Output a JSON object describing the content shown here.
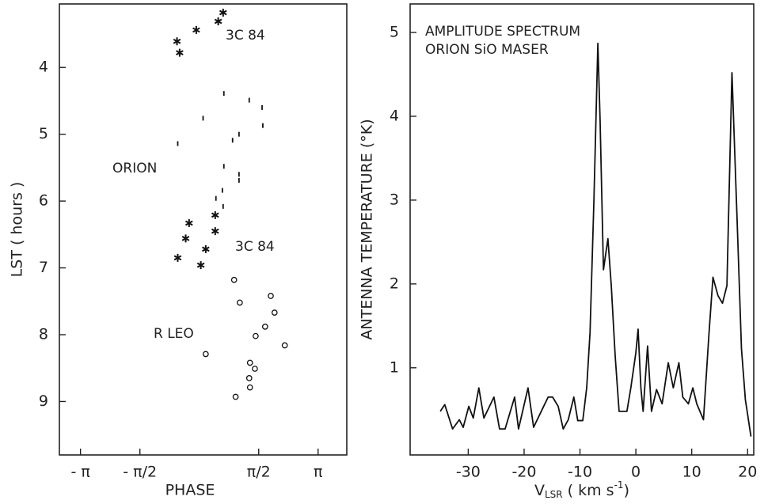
{
  "chart_data": [
    {
      "type": "scatter",
      "xlabel": "PHASE",
      "ylabel": "LST  ( hours )",
      "xlim": [
        -3.7,
        3.9
      ],
      "ylim": [
        3.05,
        9.8
      ],
      "y_inverted": true,
      "xticks": [
        {
          "value": -3.14159,
          "label": "- π"
        },
        {
          "value": -1.5708,
          "label": "- π/2"
        },
        {
          "value": 1.5708,
          "label": "π/2"
        },
        {
          "value": 3.14159,
          "label": "π"
        }
      ],
      "yticks": [
        4,
        5,
        6,
        7,
        8,
        9
      ],
      "annotations": [
        "3C 84",
        "ORION",
        "3C 84",
        "R LEO"
      ],
      "series": [
        {
          "marker": "star",
          "color": "#111",
          "x": [
            0.63,
            0.5,
            -0.08,
            -0.59,
            -0.52,
            -0.27,
            0.42,
            -0.36,
            0.42,
            0.17,
            -0.57,
            0.04
          ],
          "values": [
            3.18,
            3.31,
            3.44,
            3.61,
            3.78,
            6.33,
            6.21,
            6.56,
            6.45,
            6.72,
            6.85,
            6.96
          ]
        },
        {
          "marker": "dash",
          "color": "#111",
          "x": [
            0.65,
            1.32,
            1.66,
            1.68,
            0.1,
            1.05,
            0.88,
            -0.57,
            0.65,
            1.05,
            1.05,
            0.61,
            0.44,
            0.63
          ],
          "values": [
            4.39,
            4.49,
            4.6,
            4.87,
            4.76,
            5.0,
            5.09,
            5.14,
            5.48,
            5.6,
            5.69,
            5.84,
            5.96,
            6.08
          ]
        },
        {
          "marker": "circle",
          "color": "#111",
          "x": [
            0.92,
            1.07,
            1.89,
            1.99,
            1.74,
            1.49,
            2.26,
            0.17,
            1.34,
            1.47,
            1.32,
            1.34,
            0.96
          ],
          "values": [
            7.18,
            7.52,
            7.42,
            7.67,
            7.88,
            8.02,
            8.16,
            8.29,
            8.42,
            8.51,
            8.65,
            8.79,
            8.93
          ]
        }
      ]
    },
    {
      "type": "line",
      "xlabel": [
        "V",
        "LSR",
        " ( km s",
        "-1",
        ")"
      ],
      "ylabel": "ANTENNA  TEMPERATURE  (°K)",
      "xlim": [
        -40.4,
        21.1
      ],
      "ylim": [
        -0.04,
        5.34
      ],
      "xticks": [
        -30,
        -20,
        -10,
        0,
        10,
        20
      ],
      "yticks": [
        1,
        2,
        3,
        4,
        5
      ],
      "annotations": [
        "AMPLITUDE SPECTRUM",
        "ORION SiO MASER"
      ],
      "series": [
        {
          "color": "#111",
          "x": [
            -35.0,
            -34.2,
            -32.8,
            -31.6,
            -30.9,
            -29.9,
            -29.1,
            -28.1,
            -27.2,
            -25.4,
            -24.4,
            -23.4,
            -21.7,
            -21.0,
            -19.3,
            -18.3,
            -16.5,
            -15.7,
            -14.9,
            -13.9,
            -13.0,
            -12.1,
            -11.1,
            -10.4,
            -9.5,
            -8.8,
            -8.2,
            -7.5,
            -6.8,
            -6.4,
            -5.8,
            -5.0,
            -4.4,
            -3.7,
            -3.0,
            -1.6,
            -0.9,
            0.0,
            0.4,
            0.9,
            1.3,
            2.1,
            2.8,
            3.7,
            4.7,
            5.8,
            6.7,
            7.7,
            8.4,
            9.4,
            10.2,
            10.9,
            12.1,
            13.1,
            13.8,
            14.7,
            15.5,
            16.3,
            17.2,
            18.2,
            18.9,
            19.6,
            20.6
          ],
          "values": [
            0.48,
            0.56,
            0.27,
            0.38,
            0.29,
            0.54,
            0.4,
            0.76,
            0.4,
            0.65,
            0.27,
            0.27,
            0.65,
            0.27,
            0.76,
            0.29,
            0.54,
            0.65,
            0.65,
            0.54,
            0.27,
            0.38,
            0.65,
            0.37,
            0.37,
            0.76,
            1.42,
            3.01,
            4.87,
            3.95,
            2.17,
            2.54,
            1.98,
            1.14,
            0.48,
            0.48,
            0.76,
            1.18,
            1.46,
            0.76,
            0.48,
            1.26,
            0.48,
            0.74,
            0.57,
            1.06,
            0.76,
            1.06,
            0.65,
            0.57,
            0.76,
            0.57,
            0.38,
            1.42,
            2.08,
            1.86,
            1.77,
            1.98,
            4.52,
            2.61,
            1.23,
            0.62,
            0.18
          ]
        }
      ]
    }
  ]
}
